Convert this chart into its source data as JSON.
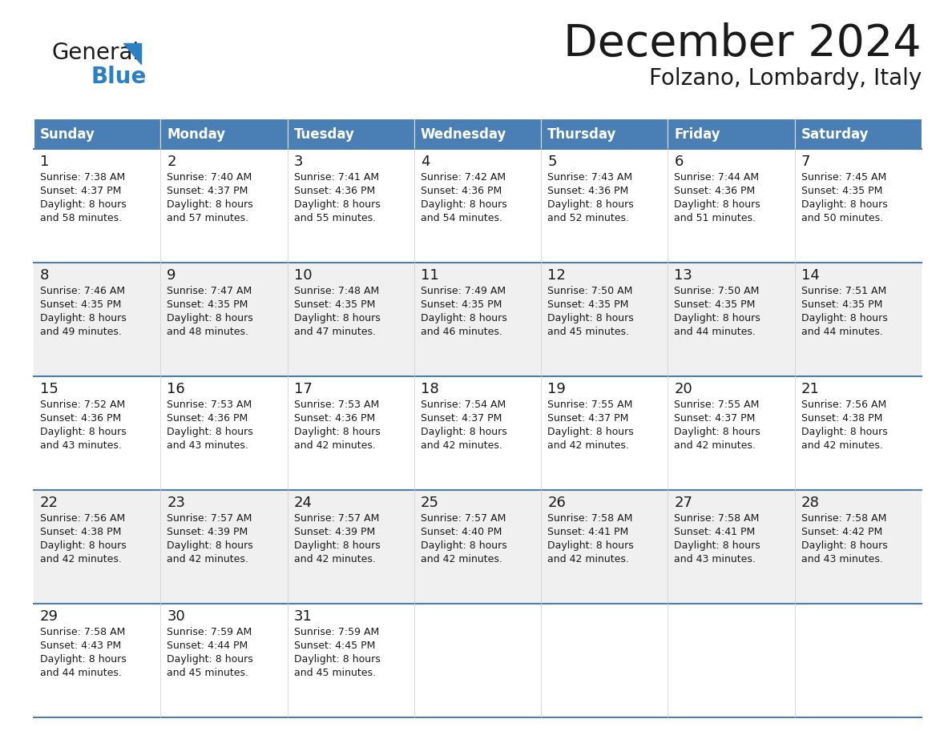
{
  "title": "December 2024",
  "subtitle": "Folzano, Lombardy, Italy",
  "header_bg": "#4a7fb5",
  "header_text_color": "#ffffff",
  "cell_bg_white": "#ffffff",
  "cell_bg_gray": "#f0f0f0",
  "border_color": "#4a7fb5",
  "text_color": "#1a1a1a",
  "day_names": [
    "Sunday",
    "Monday",
    "Tuesday",
    "Wednesday",
    "Thursday",
    "Friday",
    "Saturday"
  ],
  "weeks": [
    [
      {
        "day": "1",
        "sunrise": "7:38 AM",
        "sunset": "4:37 PM",
        "daylight_h": "8 hours",
        "daylight_m": "and 58 minutes."
      },
      {
        "day": "2",
        "sunrise": "7:40 AM",
        "sunset": "4:37 PM",
        "daylight_h": "8 hours",
        "daylight_m": "and 57 minutes."
      },
      {
        "day": "3",
        "sunrise": "7:41 AM",
        "sunset": "4:36 PM",
        "daylight_h": "8 hours",
        "daylight_m": "and 55 minutes."
      },
      {
        "day": "4",
        "sunrise": "7:42 AM",
        "sunset": "4:36 PM",
        "daylight_h": "8 hours",
        "daylight_m": "and 54 minutes."
      },
      {
        "day": "5",
        "sunrise": "7:43 AM",
        "sunset": "4:36 PM",
        "daylight_h": "8 hours",
        "daylight_m": "and 52 minutes."
      },
      {
        "day": "6",
        "sunrise": "7:44 AM",
        "sunset": "4:36 PM",
        "daylight_h": "8 hours",
        "daylight_m": "and 51 minutes."
      },
      {
        "day": "7",
        "sunrise": "7:45 AM",
        "sunset": "4:35 PM",
        "daylight_h": "8 hours",
        "daylight_m": "and 50 minutes."
      }
    ],
    [
      {
        "day": "8",
        "sunrise": "7:46 AM",
        "sunset": "4:35 PM",
        "daylight_h": "8 hours",
        "daylight_m": "and 49 minutes."
      },
      {
        "day": "9",
        "sunrise": "7:47 AM",
        "sunset": "4:35 PM",
        "daylight_h": "8 hours",
        "daylight_m": "and 48 minutes."
      },
      {
        "day": "10",
        "sunrise": "7:48 AM",
        "sunset": "4:35 PM",
        "daylight_h": "8 hours",
        "daylight_m": "and 47 minutes."
      },
      {
        "day": "11",
        "sunrise": "7:49 AM",
        "sunset": "4:35 PM",
        "daylight_h": "8 hours",
        "daylight_m": "and 46 minutes."
      },
      {
        "day": "12",
        "sunrise": "7:50 AM",
        "sunset": "4:35 PM",
        "daylight_h": "8 hours",
        "daylight_m": "and 45 minutes."
      },
      {
        "day": "13",
        "sunrise": "7:50 AM",
        "sunset": "4:35 PM",
        "daylight_h": "8 hours",
        "daylight_m": "and 44 minutes."
      },
      {
        "day": "14",
        "sunrise": "7:51 AM",
        "sunset": "4:35 PM",
        "daylight_h": "8 hours",
        "daylight_m": "and 44 minutes."
      }
    ],
    [
      {
        "day": "15",
        "sunrise": "7:52 AM",
        "sunset": "4:36 PM",
        "daylight_h": "8 hours",
        "daylight_m": "and 43 minutes."
      },
      {
        "day": "16",
        "sunrise": "7:53 AM",
        "sunset": "4:36 PM",
        "daylight_h": "8 hours",
        "daylight_m": "and 43 minutes."
      },
      {
        "day": "17",
        "sunrise": "7:53 AM",
        "sunset": "4:36 PM",
        "daylight_h": "8 hours",
        "daylight_m": "and 42 minutes."
      },
      {
        "day": "18",
        "sunrise": "7:54 AM",
        "sunset": "4:37 PM",
        "daylight_h": "8 hours",
        "daylight_m": "and 42 minutes."
      },
      {
        "day": "19",
        "sunrise": "7:55 AM",
        "sunset": "4:37 PM",
        "daylight_h": "8 hours",
        "daylight_m": "and 42 minutes."
      },
      {
        "day": "20",
        "sunrise": "7:55 AM",
        "sunset": "4:37 PM",
        "daylight_h": "8 hours",
        "daylight_m": "and 42 minutes."
      },
      {
        "day": "21",
        "sunrise": "7:56 AM",
        "sunset": "4:38 PM",
        "daylight_h": "8 hours",
        "daylight_m": "and 42 minutes."
      }
    ],
    [
      {
        "day": "22",
        "sunrise": "7:56 AM",
        "sunset": "4:38 PM",
        "daylight_h": "8 hours",
        "daylight_m": "and 42 minutes."
      },
      {
        "day": "23",
        "sunrise": "7:57 AM",
        "sunset": "4:39 PM",
        "daylight_h": "8 hours",
        "daylight_m": "and 42 minutes."
      },
      {
        "day": "24",
        "sunrise": "7:57 AM",
        "sunset": "4:39 PM",
        "daylight_h": "8 hours",
        "daylight_m": "and 42 minutes."
      },
      {
        "day": "25",
        "sunrise": "7:57 AM",
        "sunset": "4:40 PM",
        "daylight_h": "8 hours",
        "daylight_m": "and 42 minutes."
      },
      {
        "day": "26",
        "sunrise": "7:58 AM",
        "sunset": "4:41 PM",
        "daylight_h": "8 hours",
        "daylight_m": "and 42 minutes."
      },
      {
        "day": "27",
        "sunrise": "7:58 AM",
        "sunset": "4:41 PM",
        "daylight_h": "8 hours",
        "daylight_m": "and 43 minutes."
      },
      {
        "day": "28",
        "sunrise": "7:58 AM",
        "sunset": "4:42 PM",
        "daylight_h": "8 hours",
        "daylight_m": "and 43 minutes."
      }
    ],
    [
      {
        "day": "29",
        "sunrise": "7:58 AM",
        "sunset": "4:43 PM",
        "daylight_h": "8 hours",
        "daylight_m": "and 44 minutes."
      },
      {
        "day": "30",
        "sunrise": "7:59 AM",
        "sunset": "4:44 PM",
        "daylight_h": "8 hours",
        "daylight_m": "and 45 minutes."
      },
      {
        "day": "31",
        "sunrise": "7:59 AM",
        "sunset": "4:45 PM",
        "daylight_h": "8 hours",
        "daylight_m": "and 45 minutes."
      },
      null,
      null,
      null,
      null
    ]
  ],
  "logo_general_color": "#1a1a1a",
  "logo_blue_color": "#2b7fc3",
  "logo_triangle_color": "#2b7fc3",
  "title_fontsize": 40,
  "subtitle_fontsize": 20,
  "header_fontsize": 12,
  "day_num_fontsize": 13,
  "cell_text_fontsize": 9
}
